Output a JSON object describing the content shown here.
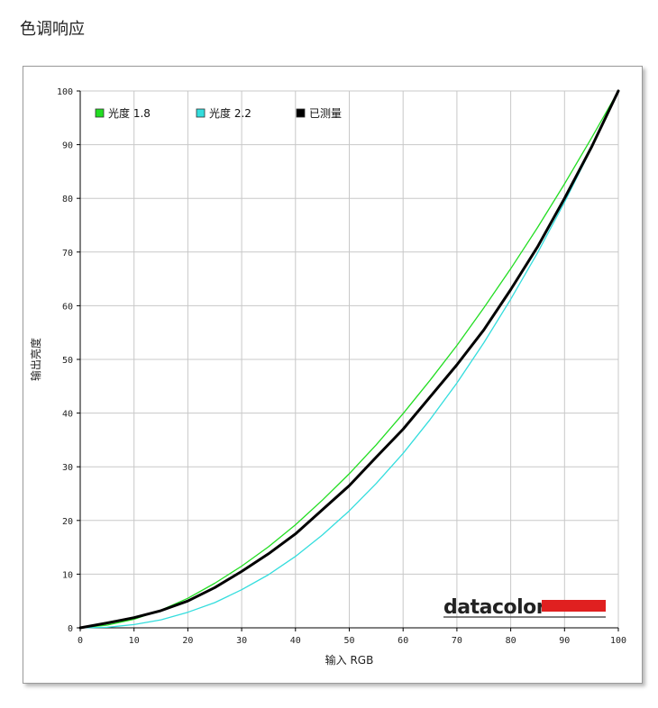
{
  "page": {
    "title": "色调响应"
  },
  "logo": {
    "text": "datacolor",
    "accent_color": "#e02020"
  },
  "chart_data": {
    "type": "line",
    "title": "",
    "xlabel": "输入 RGB",
    "ylabel": "输出亮度",
    "xlim": [
      0,
      100
    ],
    "ylim": [
      0,
      100
    ],
    "xticks": [
      0,
      10,
      20,
      30,
      40,
      50,
      60,
      70,
      80,
      90,
      100
    ],
    "yticks": [
      0,
      10,
      20,
      30,
      40,
      50,
      60,
      70,
      80,
      90,
      100
    ],
    "grid": true,
    "legend_position": "top-left",
    "series": [
      {
        "name": "光度 1.8",
        "color": "#22dd22",
        "x": [
          0,
          5,
          10,
          15,
          20,
          25,
          30,
          35,
          40,
          45,
          50,
          55,
          60,
          65,
          70,
          75,
          80,
          85,
          90,
          95,
          100
        ],
        "y": [
          0,
          0.5,
          1.6,
          3.3,
          5.5,
          8.3,
          11.5,
          15.1,
          19.2,
          23.8,
          28.7,
          34.1,
          39.9,
          46.1,
          52.6,
          59.6,
          66.9,
          74.6,
          82.7,
          91.2,
          100
        ]
      },
      {
        "name": "光度 2.2",
        "color": "#33dddd",
        "x": [
          0,
          5,
          10,
          15,
          20,
          25,
          30,
          35,
          40,
          45,
          50,
          55,
          60,
          65,
          70,
          75,
          80,
          85,
          90,
          95,
          100
        ],
        "y": [
          0,
          0.1,
          0.6,
          1.5,
          2.9,
          4.7,
          7.1,
          9.9,
          13.3,
          17.3,
          21.8,
          26.9,
          32.5,
          38.8,
          45.6,
          53.1,
          61.2,
          69.9,
          79.3,
          89.3,
          100
        ]
      },
      {
        "name": "已测量",
        "color": "#000000",
        "x": [
          0,
          5,
          10,
          15,
          20,
          25,
          30,
          35,
          40,
          45,
          50,
          55,
          60,
          65,
          70,
          75,
          80,
          85,
          90,
          95,
          100
        ],
        "y": [
          0,
          0.9,
          1.9,
          3.2,
          5.0,
          7.5,
          10.5,
          13.8,
          17.5,
          22.0,
          26.5,
          31.8,
          37.0,
          43.0,
          49.0,
          55.5,
          63.0,
          71.0,
          80.0,
          89.5,
          100
        ]
      }
    ]
  }
}
